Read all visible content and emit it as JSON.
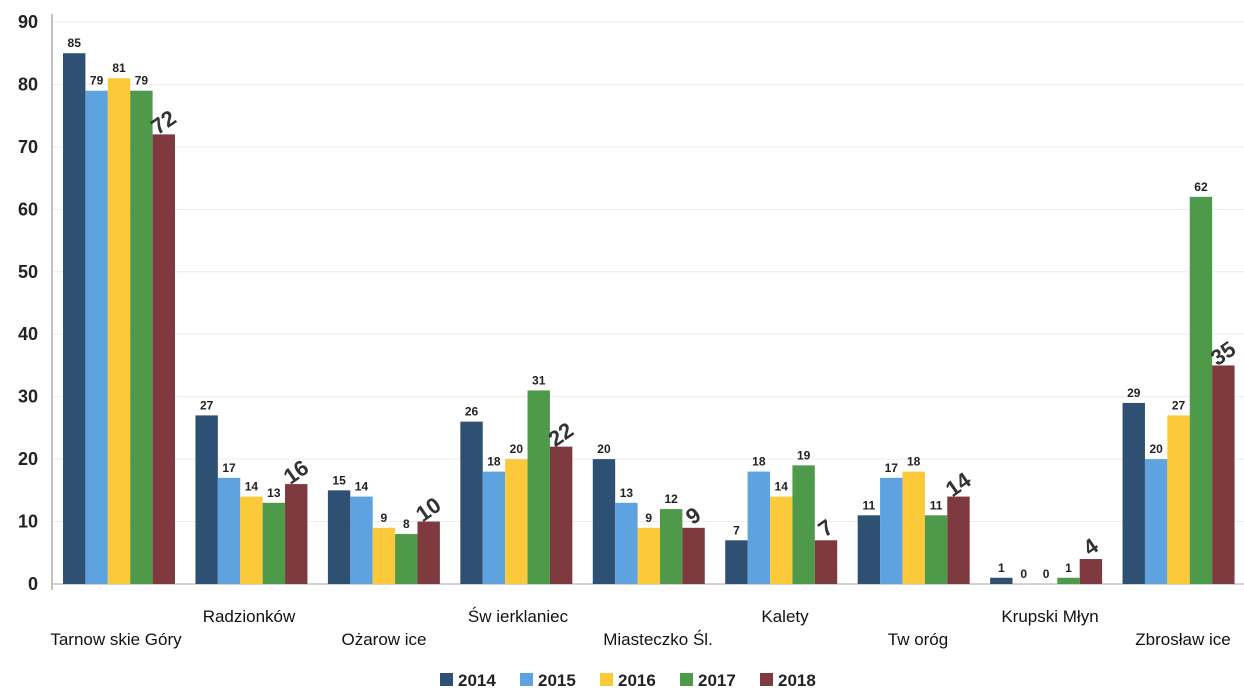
{
  "chart_data": {
    "type": "bar",
    "title": "",
    "xlabel": "",
    "ylabel": "",
    "ylim": [
      0,
      90
    ],
    "yticks": [
      0,
      10,
      20,
      30,
      40,
      50,
      60,
      70,
      80,
      90
    ],
    "grid": true,
    "legend_position": "bottom",
    "categories": [
      "Tarnowskie Góry",
      "Radzionków",
      "Ożarowice",
      "Świerklaniec",
      "Miasteczko Śl.",
      "Kalety",
      "Tworóg",
      "Krupski Młyn",
      "Zbrosławice"
    ],
    "category_display": [
      "Tarnow skie Góry",
      "Radzionków",
      "Ożarow ice",
      "Św ierklaniec",
      "Miasteczko Śl.",
      "Kalety",
      "Tw oróg",
      "Krupski Młyn",
      "Zbrosław ice"
    ],
    "series": [
      {
        "name": "2014",
        "color": "#2d5073",
        "values": [
          85,
          27,
          15,
          26,
          20,
          7,
          11,
          1,
          29
        ]
      },
      {
        "name": "2015",
        "color": "#5ea2e0",
        "values": [
          79,
          17,
          14,
          18,
          13,
          18,
          17,
          0,
          20
        ]
      },
      {
        "name": "2016",
        "color": "#fcc93a",
        "values": [
          81,
          14,
          9,
          20,
          9,
          14,
          18,
          0,
          27
        ]
      },
      {
        "name": "2017",
        "color": "#4f9a4a",
        "values": [
          79,
          13,
          8,
          31,
          12,
          19,
          11,
          1,
          62
        ]
      },
      {
        "name": "2018",
        "color": "#7f3a40",
        "values": [
          72,
          16,
          10,
          22,
          9,
          7,
          14,
          4,
          35
        ]
      }
    ]
  }
}
